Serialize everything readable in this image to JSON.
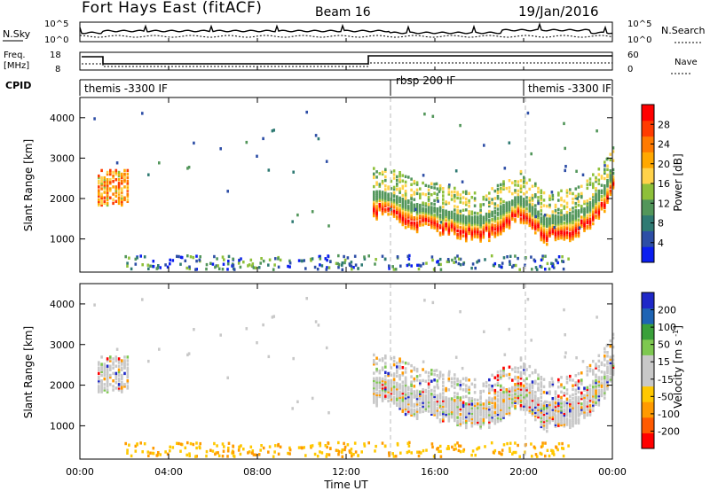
{
  "header": {
    "title": "Fort Hays East (fitACF)",
    "beam": "Beam 16",
    "date": "19/Jan/2016"
  },
  "aux_panels": {
    "noise": {
      "left_label": "N.Sky",
      "right_label": "N.Search",
      "left_ticks": [
        "10^5",
        "10^0"
      ],
      "right_ticks": [
        "10^5",
        "10^0"
      ]
    },
    "freq": {
      "left_label_1": "Freq.",
      "left_label_2": "[MHz]",
      "right_label": "Nave",
      "left_ticks": [
        "18",
        "8"
      ],
      "right_ticks": [
        "60",
        "0"
      ]
    },
    "cpid": {
      "label": "CPID",
      "segments": [
        {
          "name": "themis -3300 IF",
          "start_hour": 0,
          "end_hour": 14
        },
        {
          "name": "rbsp 200 IF",
          "start_hour": 14,
          "end_hour": 20
        },
        {
          "name": "themis -3300 IF",
          "start_hour": 20,
          "end_hour": 24
        }
      ]
    }
  },
  "chart_data": [
    {
      "type": "heatmap",
      "title": "",
      "xlabel": "Time UT",
      "ylabel": "Slant Range [km]",
      "xlim": [
        0,
        24
      ],
      "ylim": [
        180,
        4500
      ],
      "x_ticks": [
        "00:00",
        "04:00",
        "08:00",
        "12:00",
        "16:00",
        "20:00",
        "00:00"
      ],
      "y_ticks": [
        "1000",
        "2000",
        "3000",
        "4000"
      ],
      "y_tick_values": [
        1000,
        2000,
        3000,
        4000
      ],
      "colorbar": {
        "label": "Power [dB]",
        "ticks": [
          "4",
          "8",
          "12",
          "16",
          "20",
          "24",
          "28"
        ],
        "range": [
          0,
          30
        ],
        "colors": [
          "#0a1ef0",
          "#2d4ea6",
          "#2f7a73",
          "#52965a",
          "#8ec03a",
          "#ffd24a",
          "#ffa800",
          "#ff7a00",
          "#ff3b00",
          "#ff0000"
        ]
      },
      "band_upper_edge_km": [
        [
          13.2,
          2150
        ],
        [
          14.0,
          2100
        ],
        [
          15.0,
          1850
        ],
        [
          16.0,
          1750
        ],
        [
          17.0,
          1600
        ],
        [
          18.0,
          1500
        ],
        [
          19.0,
          1800
        ],
        [
          19.8,
          2050
        ],
        [
          20.2,
          1850
        ],
        [
          21.0,
          1500
        ],
        [
          22.0,
          1600
        ],
        [
          22.8,
          1800
        ],
        [
          23.5,
          2200
        ],
        [
          24.0,
          2700
        ]
      ],
      "band_peak_power_db": 28,
      "patch_near_01UT_km": [
        1800,
        2700
      ]
    },
    {
      "type": "heatmap",
      "title": "",
      "xlabel": "Time UT",
      "ylabel": "Slant Range [km]",
      "xlim": [
        0,
        24
      ],
      "ylim": [
        180,
        4500
      ],
      "x_ticks": [
        "00:00",
        "04:00",
        "08:00",
        "12:00",
        "16:00",
        "20:00",
        "00:00"
      ],
      "y_ticks": [
        "1000",
        "2000",
        "3000",
        "4000"
      ],
      "y_tick_values": [
        1000,
        2000,
        3000,
        4000
      ],
      "colorbar": {
        "label": "Velocity [m s-1]",
        "ticks": [
          "200",
          "100",
          "50",
          "15",
          "-15",
          "-50",
          "-100",
          "-200"
        ],
        "range": [
          -250,
          250
        ],
        "colors": [
          "#ff0000",
          "#ff5a00",
          "#ff9a00",
          "#ffc800",
          "#c8c8c8",
          "#c8c8c8",
          "#7ec850",
          "#3aa03a",
          "#1e64b4",
          "#1e28c8"
        ]
      }
    }
  ]
}
